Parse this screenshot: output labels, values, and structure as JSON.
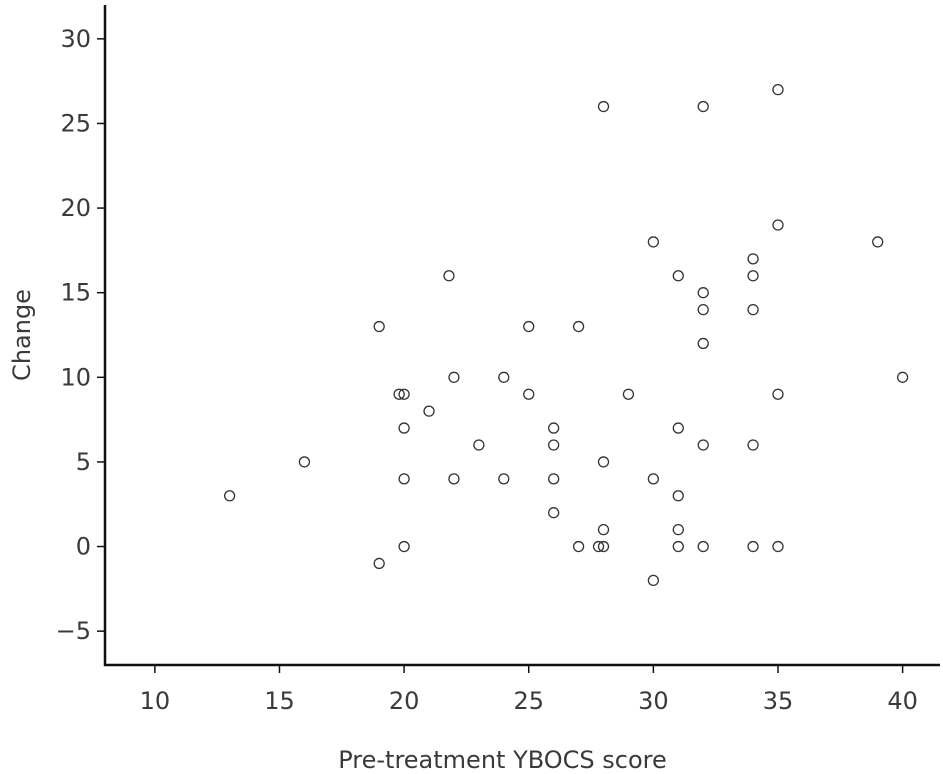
{
  "chart_data": {
    "type": "scatter",
    "title": "",
    "xlabel": "Pre-treatment YBOCS score",
    "ylabel": "Change",
    "xlim": [
      8,
      41.5
    ],
    "ylim": [
      -7,
      32
    ],
    "x_ticks": [
      10,
      15,
      20,
      25,
      30,
      35,
      40
    ],
    "y_ticks": [
      -5,
      0,
      5,
      10,
      15,
      20,
      25,
      30
    ],
    "x_tick_labels": [
      "10",
      "15",
      "20",
      "25",
      "30",
      "35",
      "40"
    ],
    "y_tick_labels": [
      "−5",
      "0",
      "5",
      "10",
      "15",
      "20",
      "25",
      "30"
    ],
    "grid": false,
    "legend": "none",
    "series": [
      {
        "points": [
          [
            13,
            3
          ],
          [
            16,
            5
          ],
          [
            19,
            13
          ],
          [
            19,
            -1
          ],
          [
            19.8,
            9
          ],
          [
            20,
            9
          ],
          [
            20,
            7
          ],
          [
            20,
            4
          ],
          [
            20,
            0
          ],
          [
            21,
            8
          ],
          [
            21.8,
            16
          ],
          [
            22,
            10
          ],
          [
            22,
            4
          ],
          [
            23,
            6
          ],
          [
            24,
            10
          ],
          [
            24,
            4
          ],
          [
            25,
            13
          ],
          [
            25,
            9
          ],
          [
            26,
            7
          ],
          [
            26,
            6
          ],
          [
            26,
            4
          ],
          [
            26,
            2
          ],
          [
            27,
            13
          ],
          [
            27,
            0
          ],
          [
            27.8,
            0
          ],
          [
            28,
            26
          ],
          [
            28,
            5
          ],
          [
            28,
            1
          ],
          [
            28,
            0
          ],
          [
            29,
            9
          ],
          [
            30,
            18
          ],
          [
            30,
            4
          ],
          [
            30,
            -2
          ],
          [
            31,
            16
          ],
          [
            31,
            7
          ],
          [
            31,
            3
          ],
          [
            31,
            1
          ],
          [
            31,
            0
          ],
          [
            32,
            26
          ],
          [
            32,
            15
          ],
          [
            32,
            14
          ],
          [
            32,
            12
          ],
          [
            32,
            6
          ],
          [
            32,
            0
          ],
          [
            34,
            17
          ],
          [
            34,
            16
          ],
          [
            34,
            14
          ],
          [
            34,
            6
          ],
          [
            34,
            0
          ],
          [
            35,
            27
          ],
          [
            35,
            19
          ],
          [
            35,
            9
          ],
          [
            35,
            0
          ],
          [
            39,
            18
          ],
          [
            40,
            10
          ]
        ]
      }
    ]
  }
}
